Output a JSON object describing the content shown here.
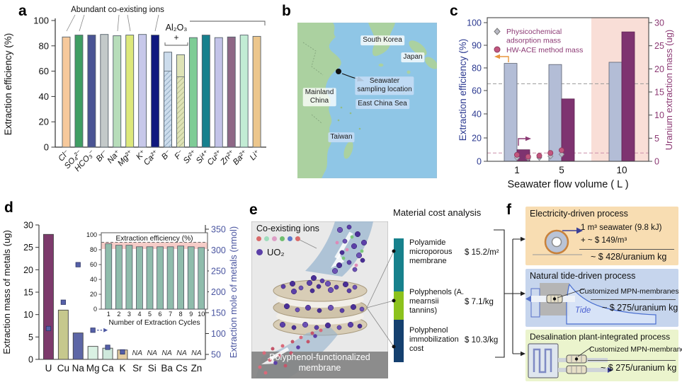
{
  "panels": {
    "a": {
      "letter": "a"
    },
    "b": {
      "letter": "b",
      "labels": {
        "south_korea": "South Korea",
        "japan": "Japan",
        "mainland": [
          "Mainland",
          "China"
        ],
        "sampling": [
          "Seawater",
          "sampling location"
        ],
        "east_china_sea": "East China Sea",
        "taiwan": "Taiwan"
      }
    },
    "c": {
      "letter": "c"
    },
    "d": {
      "letter": "d"
    },
    "e": {
      "letter": "e",
      "ions_label": "Co-existing ions",
      "ion_colors": [
        "#d96a6a",
        "#9fdcbc",
        "#dd9ec6",
        "#6fbe6f",
        "#5a78cc",
        "#d96a6a"
      ],
      "uo2_label": "UO₂",
      "uo2_color": "#5b3fa8",
      "membrane_caption_line1": "Polyphenol-functionalized",
      "membrane_caption_line2": "membrane",
      "cost": {
        "header": "Material cost analysis",
        "items": [
          {
            "name": "Polyamide microporous membrane",
            "cost": "$ 15.2/m²",
            "color": "#17818c"
          },
          {
            "name": "Polyphenols (A. mearnsii tannins)",
            "cost": "$ 7.1/kg",
            "color": "#8cc21d"
          },
          {
            "name": "Polyphenol immobilization cost",
            "cost": "$ 10.3/kg",
            "color": "#15406f"
          }
        ]
      }
    },
    "f": {
      "letter": "f",
      "boxes": [
        {
          "title": "Electricity-driven process",
          "bg": "#f8ddb2",
          "line1": "1 m³ seawater (9.8 kJ)",
          "line2": "+ ~ $ 149/m³",
          "total": "~ $ 428/uranium kg"
        },
        {
          "title": "Natural tide-driven process",
          "bg": "#c6d5ed",
          "membrane_label": "Customized MPN-membranes",
          "tide_label": "Tide",
          "total": "~ $ 275/uranium kg"
        },
        {
          "title": "Desalination plant-integrated process",
          "bg": "#ebf4cd",
          "membrane_label": "Customized MPN-membranes",
          "total": "~ $ 275/uranium kg"
        }
      ]
    }
  },
  "chart_data": [
    {
      "id": "panel-a",
      "type": "bar",
      "ylabel": "Extraction efficiency (%)",
      "ylim": [
        0,
        100
      ],
      "yticks": [
        0,
        20,
        40,
        60,
        80,
        100
      ],
      "categories": [
        "Cl⁻",
        "SO₄²⁻",
        "HCO₃⁻",
        "Br⁻",
        "Na⁺",
        "Mg²⁺",
        "K⁺",
        "Ca²⁺",
        "B⁻",
        "F⁻",
        "Sr²⁺",
        "Si⁴⁺",
        "Cu²⁺",
        "Zn²⁺",
        "Ba²⁺",
        "Li⁺"
      ],
      "values": [
        87,
        88.5,
        88.5,
        89,
        88,
        88.5,
        89,
        88.5,
        75,
        73,
        86.5,
        88.5,
        86.5,
        87,
        88.5,
        87.5
      ],
      "hatched_lower_values": [
        null,
        null,
        null,
        null,
        null,
        null,
        null,
        null,
        60,
        55.5,
        null,
        null,
        null,
        null,
        null,
        null
      ],
      "colors": [
        "#f6c99c",
        "#3f9e63",
        "#4a5494",
        "#c3c9c9",
        "#b7ddba",
        "#dde87b",
        "#c7c8ea",
        "#10197f",
        "#ccdcec",
        "#dee3b6",
        "#7ecc96",
        "#17808d",
        "#c3c3e8",
        "#8e6786",
        "#c2ecd4",
        "#ecc68c"
      ],
      "annotations": {
        "group": "Abundant co-existing ions",
        "group_bars": [
          1,
          8
        ],
        "additive": "Al₂O₃",
        "plus": "+",
        "additive_bars": [
          9,
          10
        ]
      }
    },
    {
      "id": "panel-c",
      "type": "bar+scatter",
      "xlabel": "Seawater flow volume ( L )",
      "categories": [
        "1",
        "5",
        "10"
      ],
      "left_axis": {
        "label": "Extraction efficiency (%)",
        "ticks": [
          0,
          20,
          40,
          60,
          80,
          90,
          100
        ],
        "color": "#2b3990"
      },
      "right_axis": {
        "label": "Uranium extraction mass (ug)",
        "ticks": [
          0,
          5,
          10,
          15,
          20,
          25,
          30
        ],
        "color": "#8c3a74"
      },
      "series": [
        {
          "name": "Extraction efficiency (%)",
          "axis": "left",
          "type": "bar",
          "color": "#b3bdd6",
          "values": [
            82,
            81.5,
            82.5
          ]
        },
        {
          "name": "Uranium extraction mass (ug)",
          "axis": "right",
          "type": "bar",
          "color": "#7e3370",
          "values": [
            2.5,
            13.5,
            28
          ]
        },
        {
          "name": "Physicochemical adsorption mass",
          "axis": "right",
          "type": "scatter",
          "marker": "diamond",
          "color": "#b9bac4",
          "x": [
            1,
            2,
            3,
            4,
            5
          ],
          "values": [
            0.8,
            0.7,
            0.8,
            1.1,
            1.5
          ]
        },
        {
          "name": "HW-ACE method mass",
          "axis": "right",
          "type": "scatter",
          "marker": "circle",
          "color": "#c2567e",
          "x": [
            1,
            2,
            3,
            4,
            5
          ],
          "values": [
            1.4,
            1.0,
            1.2,
            1.8,
            2.4
          ]
        }
      ],
      "reference_lines": [
        {
          "axis": "left",
          "value": 66,
          "style": "dashed",
          "color": "#999999"
        },
        {
          "axis": "right",
          "value": 1.8,
          "style": "dashed",
          "color": "#cc8faa"
        }
      ],
      "highlight": {
        "category": "10",
        "color": "#f9ded7"
      }
    },
    {
      "id": "panel-d",
      "type": "bar+scatter",
      "categories": [
        "U",
        "Cu",
        "Na",
        "Mg",
        "Ca",
        "K",
        "Sr",
        "Si",
        "Ba",
        "Cs",
        "Zn"
      ],
      "left_axis": {
        "label": "Extraction mass of metals (ug)",
        "ticks": [
          0,
          5,
          10,
          15,
          20,
          25,
          30
        ],
        "color": "#111111"
      },
      "right_axis": {
        "label": "Extraction mole of metals (nmol)",
        "ticks": [
          50,
          100,
          150,
          200,
          250,
          300,
          350
        ],
        "color": "#4a55a0"
      },
      "bar_values_ug": [
        27.9,
        11,
        5.9,
        2.9,
        2.5,
        2.1,
        null,
        null,
        null,
        null,
        null
      ],
      "bar_colors": [
        "#7d3a6c",
        "#c6c88d",
        "#5d66a6",
        "#d9f1e3",
        "#cfe9dc",
        "#e4cda1",
        null,
        null,
        null,
        null,
        null
      ],
      "mole_values_nmol": [
        112,
        175,
        265,
        108,
        67,
        56,
        null,
        null,
        null,
        null,
        null
      ],
      "marker_color": "#5560a8",
      "na_text": "NA"
    },
    {
      "id": "panel-d-inset",
      "type": "bar",
      "title": "Extraction efficiency (%)",
      "xlabel": "Number of Extraction Cycles",
      "categories": [
        "1",
        "2",
        "3",
        "4",
        "5",
        "6",
        "7",
        "8",
        "9",
        "10"
      ],
      "values": [
        88,
        86,
        86,
        84,
        84,
        84,
        84,
        85,
        84,
        83
      ],
      "yticks": [
        0,
        20,
        40,
        60,
        80,
        100
      ],
      "bar_color": "#8fbcab",
      "band": {
        "from": 81,
        "to": 90,
        "color": "#f6cdc8"
      },
      "reference_line": {
        "value": 90,
        "style": "dashed"
      }
    }
  ]
}
